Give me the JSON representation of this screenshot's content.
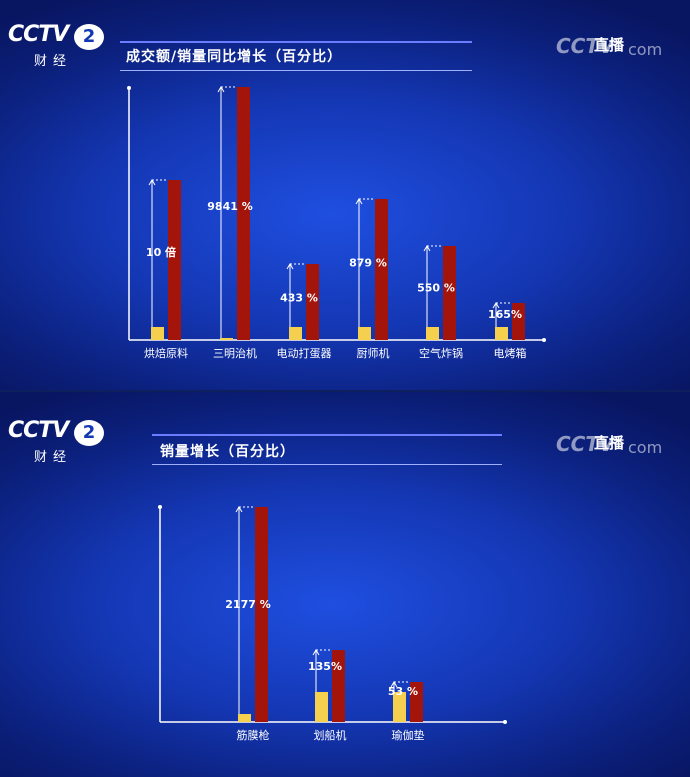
{
  "logo": {
    "word": "CCTV",
    "number": "2",
    "sub": "财经"
  },
  "live": {
    "mark": "CCTV",
    "text": "直播",
    "com": "com"
  },
  "colors": {
    "yellow": "#f5d04e",
    "red": "#a3140a",
    "axis": "#ffffff",
    "text": "#ffffff"
  },
  "chart_data": [
    {
      "type": "bar",
      "title": "成交额/销量同比增长（百分比）",
      "categories": [
        "烘焙原料",
        "三明治机",
        "电动打蛋器",
        "厨师机",
        "空气炸锅",
        "电烤箱"
      ],
      "series": [
        {
          "values": [
            100,
            1,
            100,
            100,
            100,
            100
          ]
        },
        {
          "values": [
            1000,
            9841,
            433,
            879,
            550,
            165
          ]
        }
      ],
      "data_labels": [
        "10 倍",
        "9841 %",
        "433 %",
        "879 %",
        "550 %",
        "165%"
      ],
      "xlabel": "",
      "ylabel": ""
    },
    {
      "type": "bar",
      "title": "销量增长（百分比）",
      "categories": [
        "筋膜枪",
        "划船机",
        "瑜伽垫"
      ],
      "series": [
        {
          "values": [
            100,
            100,
            100
          ]
        },
        {
          "values": [
            2177,
            135,
            53
          ]
        }
      ],
      "data_labels": [
        "2177 %",
        "135%",
        "53 %"
      ],
      "xlabel": "",
      "ylabel": ""
    }
  ]
}
